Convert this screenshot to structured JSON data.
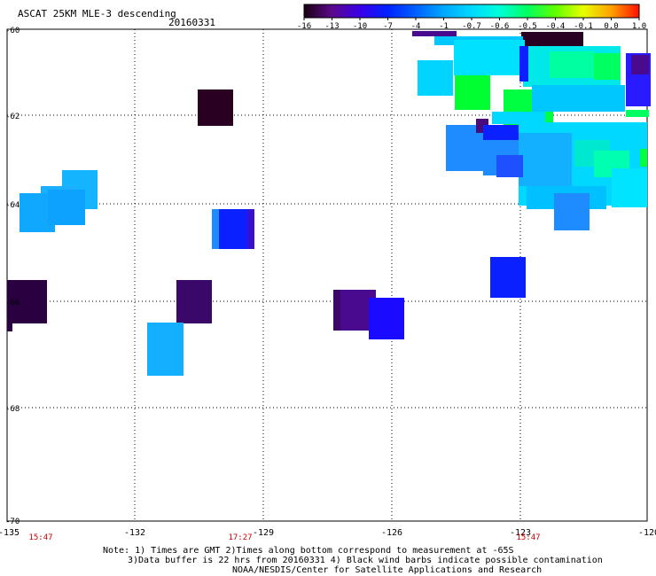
{
  "header": {
    "title": "ASCAT 25KM MLE-3 descending",
    "date": "20160331"
  },
  "colorbar": {
    "labels": [
      "-16",
      "-13",
      "-10",
      "-7",
      "-4",
      "-1",
      "-0.7",
      "-0.6",
      "-0.5",
      "-0.4",
      "-0.1",
      "0.0",
      "1.0"
    ],
    "colors": [
      "#1a0010",
      "#5a0a8a",
      "#3a00e8",
      "#0022ff",
      "#0060ff",
      "#00a8ff",
      "#00d8ff",
      "#00ffd8",
      "#00ff60",
      "#60ff00",
      "#e8ff00",
      "#ffa000",
      "#ff1000"
    ]
  },
  "axes": {
    "y_labels": [
      "-60",
      "-62",
      "-64",
      "-66",
      "-68",
      "-70"
    ],
    "x_labels": [
      "-135",
      "-132",
      "-129",
      "-126",
      "-123",
      "-120"
    ],
    "time_labels": [
      "15:47",
      "17:27",
      "15:47"
    ]
  },
  "colors": {
    "grid": "#000000",
    "time_text": "#cc0000",
    "dark": "#2a0022",
    "purple": "#4a0a7a",
    "blue": "#0a1aff",
    "mid_blue": "#1e8cff",
    "light_blue": "#12b0ff",
    "cyan": "#00e0ff",
    "green": "#00ff20",
    "sea_green": "#00ffa0"
  },
  "notes": {
    "line1": "Note: 1) Times are GMT 2)Times along bottom correspond to measurement at -65S",
    "line2": "3)Data buffer is 22 hrs from 20160331 4) Black wind barbs indicate possible contamination",
    "line3": "NOAA/NESDIS/Center for Satellite Applications and Research"
  }
}
